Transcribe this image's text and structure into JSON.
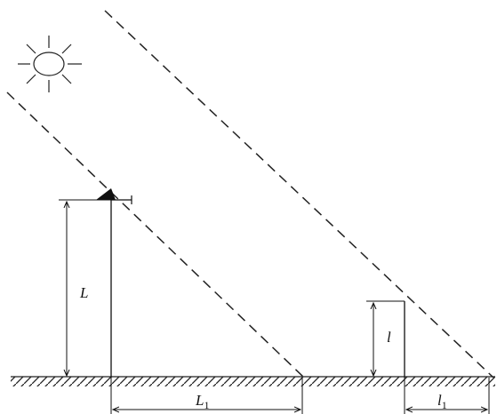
{
  "labels": {
    "tall_height": {
      "main": "L"
    },
    "tall_shadow": {
      "main": "L",
      "sub": "1"
    },
    "short_height": {
      "main": "l"
    },
    "short_shadow": {
      "main": "l",
      "sub": "1"
    }
  }
}
